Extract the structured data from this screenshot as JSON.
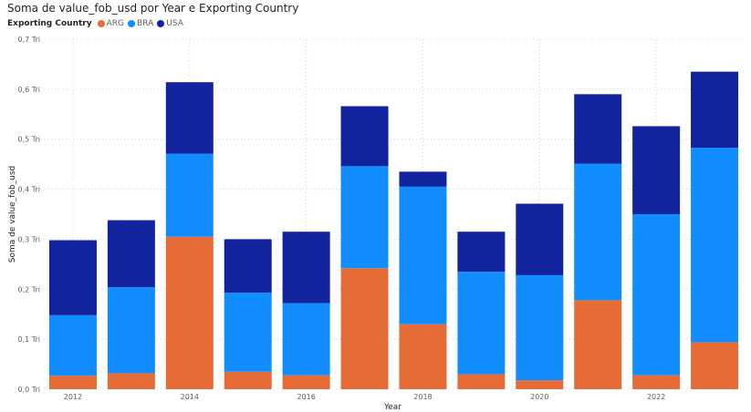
{
  "title": "Soma de value_fob_usd por Year e Exporting Country",
  "colors": {
    "ARG": "#E66C37",
    "BRA": "#118DFF",
    "USA": "#12239E"
  },
  "chart_data": {
    "type": "bar",
    "stacked": true,
    "title": "Soma de value_fob_usd por Year e Exporting Country",
    "xlabel": "Year",
    "ylabel": "Soma de value_fob_usd",
    "legend_title": "Exporting Country",
    "legend_position": "top-left",
    "grid": true,
    "ylim": [
      0,
      0.7
    ],
    "y_unit": "Tri",
    "y_ticks": [
      "0,0 Tri",
      "0,1 Tri",
      "0,2 Tri",
      "0,3 Tri",
      "0,4 Tri",
      "0,5 Tri",
      "0,6 Tri",
      "0,7 Tri"
    ],
    "x_tick_labels": [
      "2012",
      "2014",
      "2016",
      "2018",
      "2020",
      "2022"
    ],
    "categories": [
      "2012",
      "2013",
      "2014",
      "2015",
      "2016",
      "2017",
      "2018",
      "2019",
      "2020",
      "2021",
      "2022",
      "2023"
    ],
    "series": [
      {
        "name": "ARG",
        "values": [
          0.027,
          0.032,
          0.305,
          0.035,
          0.028,
          0.242,
          0.13,
          0.03,
          0.018,
          0.178,
          0.028,
          0.094
        ]
      },
      {
        "name": "BRA",
        "values": [
          0.121,
          0.172,
          0.166,
          0.158,
          0.144,
          0.204,
          0.275,
          0.205,
          0.21,
          0.273,
          0.322,
          0.389
        ]
      },
      {
        "name": "USA",
        "values": [
          0.15,
          0.134,
          0.143,
          0.107,
          0.143,
          0.12,
          0.03,
          0.08,
          0.143,
          0.139,
          0.176,
          0.152
        ]
      }
    ]
  }
}
